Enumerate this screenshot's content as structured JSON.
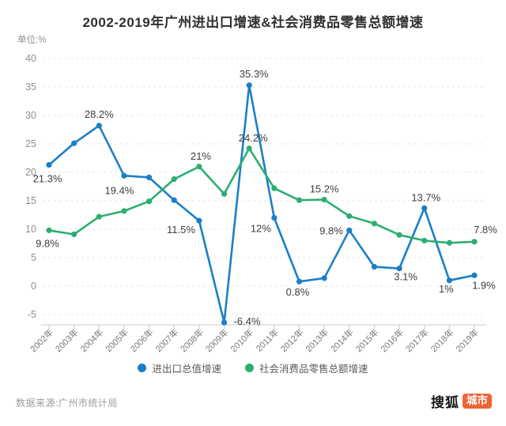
{
  "title": "2002-2019年广州进出口增速&社会消费品零售总额增速",
  "unit_label": "单位:%",
  "colors": {
    "blue": "#1B7FC6",
    "green": "#2DAE71",
    "grid": "#e5e5e5",
    "axis": "#c9c9c9",
    "tick_text": "#8f8f8f",
    "xlabel_text": "#787878",
    "point_label_text": "#3d3d3d",
    "logo_badge_bg": "#EE6433"
  },
  "chart_data": {
    "type": "line",
    "title": "2002-2019年广州进出口增速&社会消费品零售总额增速",
    "xlabel": "",
    "ylabel": "单位:%",
    "ylim": [
      -7,
      41
    ],
    "yticks": [
      40,
      35,
      30,
      25,
      20,
      15,
      10,
      5,
      0,
      -5
    ],
    "grid": true,
    "legend_position": "bottom",
    "categories": [
      "2002年",
      "2003年",
      "2004年",
      "2005年",
      "2006年",
      "2007年",
      "2008年",
      "2009年",
      "2010年",
      "2011年",
      "2012年",
      "2013年",
      "2014年",
      "2015年",
      "2016年",
      "2017年",
      "2018年",
      "2019年"
    ],
    "series": [
      {
        "name": "进出口总值增速",
        "color": "#1B7FC6",
        "values": [
          21.3,
          25.1,
          28.2,
          19.4,
          19.1,
          15.1,
          11.5,
          -6.4,
          35.3,
          12,
          0.8,
          1.4,
          9.8,
          3.4,
          3.1,
          13.7,
          1,
          1.9
        ],
        "point_labels": [
          {
            "i": 0,
            "text": "21.3%",
            "anchor": "middle",
            "dx": -2,
            "dy": 22
          },
          {
            "i": 2,
            "text": "28.2%",
            "anchor": "middle",
            "dx": 0,
            "dy": -10
          },
          {
            "i": 3,
            "text": "19.4%",
            "anchor": "middle",
            "dx": -6,
            "dy": 23
          },
          {
            "i": 6,
            "text": "11.5%",
            "anchor": "end",
            "dx": -5,
            "dy": 16
          },
          {
            "i": 7,
            "text": "-6.4%",
            "anchor": "start",
            "dx": 12,
            "dy": 3
          },
          {
            "i": 8,
            "text": "35.3%",
            "anchor": "middle",
            "dx": 6,
            "dy": -10
          },
          {
            "i": 9,
            "text": "12%",
            "anchor": "end",
            "dx": -4,
            "dy": 18
          },
          {
            "i": 10,
            "text": "0.8%",
            "anchor": "middle",
            "dx": -2,
            "dy": 18
          },
          {
            "i": 12,
            "text": "9.8%",
            "anchor": "end",
            "dx": -8,
            "dy": 5
          },
          {
            "i": 14,
            "text": "3.1%",
            "anchor": "middle",
            "dx": 8,
            "dy": 15
          },
          {
            "i": 15,
            "text": "13.7%",
            "anchor": "middle",
            "dx": 2,
            "dy": -9
          },
          {
            "i": 16,
            "text": "1%",
            "anchor": "middle",
            "dx": -4,
            "dy": 15
          },
          {
            "i": 17,
            "text": "1.9%",
            "anchor": "middle",
            "dx": 12,
            "dy": 17
          }
        ]
      },
      {
        "name": "社会消费品零售总额增速",
        "color": "#2DAE71",
        "values": [
          9.8,
          9.1,
          12.2,
          13.2,
          14.9,
          18.8,
          21,
          16.2,
          24.2,
          17.2,
          15.1,
          15.2,
          12.3,
          11,
          9,
          8,
          7.6,
          7.8
        ],
        "point_labels": [
          {
            "i": 0,
            "text": "9.8%",
            "anchor": "middle",
            "dx": -2,
            "dy": 21
          },
          {
            "i": 6,
            "text": "21%",
            "anchor": "middle",
            "dx": 2,
            "dy": -9
          },
          {
            "i": 8,
            "text": "24.2%",
            "anchor": "middle",
            "dx": 5,
            "dy": -9
          },
          {
            "i": 11,
            "text": "15.2%",
            "anchor": "middle",
            "dx": 0,
            "dy": -9
          },
          {
            "i": 17,
            "text": "7.8%",
            "anchor": "middle",
            "dx": 14,
            "dy": -11
          }
        ]
      }
    ]
  },
  "footer": {
    "source": "数据来源:广州市统计局",
    "logo_text": "搜狐",
    "logo_badge": "城市"
  }
}
